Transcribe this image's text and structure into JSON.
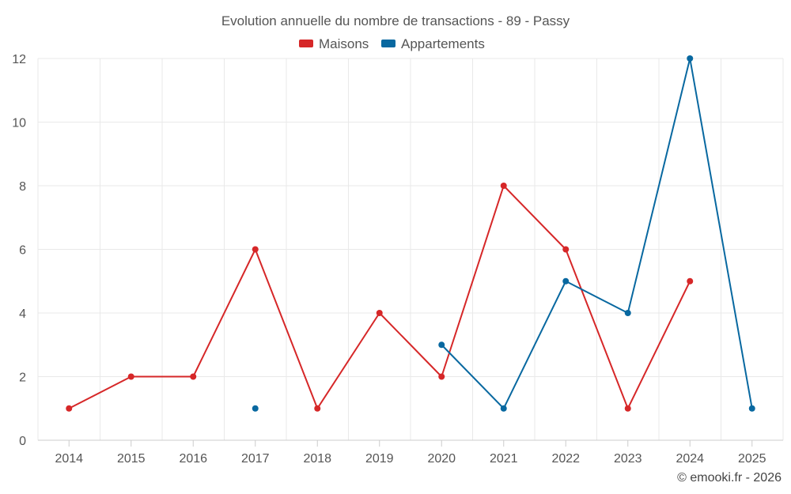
{
  "chart_data": {
    "type": "line",
    "title": "Evolution annuelle du nombre de transactions - 89 - Passy",
    "categories": [
      "2014",
      "2015",
      "2016",
      "2017",
      "2018",
      "2019",
      "2020",
      "2021",
      "2022",
      "2023",
      "2024",
      "2025"
    ],
    "ylim": [
      0,
      12
    ],
    "yticks": [
      0,
      2,
      4,
      6,
      8,
      10,
      12
    ],
    "grid": true,
    "legend_position": "top-center",
    "series": [
      {
        "name": "Maisons",
        "color": "#d62728",
        "values": [
          1,
          2,
          2,
          6,
          1,
          4,
          2,
          8,
          6,
          1,
          5,
          null
        ]
      },
      {
        "name": "Appartements",
        "color": "#0868a0",
        "values": [
          null,
          null,
          null,
          1,
          null,
          null,
          3,
          1,
          5,
          4,
          12,
          1
        ]
      }
    ]
  },
  "credit": "© emooki.fr - 2026"
}
